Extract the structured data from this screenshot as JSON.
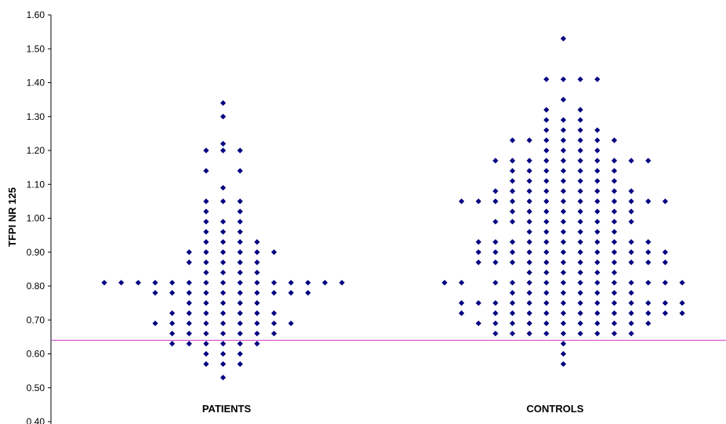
{
  "chart_data": {
    "type": "scatter",
    "title": "",
    "xlabel": "",
    "ylabel": "TFPI NR 125",
    "ylim": [
      0.4,
      1.6
    ],
    "ytick_step": 0.1,
    "y_ticks": [
      "0.40",
      "0.50",
      "0.60",
      "0.70",
      "0.80",
      "0.90",
      "1.00",
      "1.10",
      "1.20",
      "1.30",
      "1.40",
      "1.50",
      "1.60"
    ],
    "categories": [
      "PATIENTS",
      "CONTROLS"
    ],
    "grid": false,
    "legend": "none",
    "marker_color": "#000080",
    "reference_line": {
      "y": 0.64,
      "color": "#cc33cc"
    },
    "series": [
      {
        "columns": [
          [
            0.81
          ],
          [
            0.81
          ],
          [
            0.81
          ],
          [
            0.81,
            0.78,
            0.69
          ],
          [
            0.81,
            0.78,
            0.72,
            0.69,
            0.66,
            0.63
          ],
          [
            0.9,
            0.87,
            0.81,
            0.78,
            0.75,
            0.72,
            0.69,
            0.66,
            0.63
          ],
          [
            1.2,
            1.14,
            1.05,
            1.02,
            0.99,
            0.96,
            0.93,
            0.9,
            0.87,
            0.84,
            0.81,
            0.78,
            0.75,
            0.72,
            0.69,
            0.66,
            0.63,
            0.6,
            0.57
          ],
          [
            1.34,
            1.3,
            1.22,
            1.2,
            1.09,
            1.05,
            0.99,
            0.96,
            0.93,
            0.9,
            0.87,
            0.84,
            0.81,
            0.78,
            0.75,
            0.72,
            0.69,
            0.66,
            0.63,
            0.6,
            0.57,
            0.53
          ],
          [
            1.2,
            1.14,
            1.05,
            1.02,
            0.99,
            0.96,
            0.93,
            0.9,
            0.87,
            0.84,
            0.81,
            0.78,
            0.75,
            0.72,
            0.69,
            0.66,
            0.63,
            0.6,
            0.57
          ],
          [
            0.93,
            0.9,
            0.87,
            0.84,
            0.81,
            0.78,
            0.75,
            0.72,
            0.69,
            0.66,
            0.63
          ],
          [
            0.9,
            0.81,
            0.78,
            0.72,
            0.69,
            0.66
          ],
          [
            0.81,
            0.78,
            0.69
          ],
          [
            0.81,
            0.78
          ],
          [
            0.81
          ],
          [
            0.81
          ]
        ]
      },
      {
        "columns": [
          [
            0.81
          ],
          [
            1.05,
            0.81,
            0.75,
            0.72
          ],
          [
            1.05,
            0.93,
            0.9,
            0.87,
            0.75,
            0.69
          ],
          [
            1.17,
            1.08,
            1.05,
            0.99,
            0.93,
            0.9,
            0.87,
            0.81,
            0.75,
            0.72,
            0.69,
            0.66
          ],
          [
            1.23,
            1.17,
            1.14,
            1.11,
            1.08,
            1.05,
            1.02,
            0.99,
            0.93,
            0.9,
            0.87,
            0.81,
            0.78,
            0.75,
            0.72,
            0.69,
            0.66
          ],
          [
            1.23,
            1.17,
            1.14,
            1.11,
            1.08,
            1.05,
            1.02,
            0.99,
            0.96,
            0.93,
            0.9,
            0.87,
            0.84,
            0.81,
            0.78,
            0.75,
            0.72,
            0.69,
            0.66
          ],
          [
            1.41,
            1.32,
            1.29,
            1.26,
            1.23,
            1.2,
            1.17,
            1.14,
            1.11,
            1.08,
            1.05,
            1.02,
            0.99,
            0.96,
            0.93,
            0.9,
            0.87,
            0.84,
            0.81,
            0.78,
            0.75,
            0.72,
            0.69,
            0.66
          ],
          [
            1.53,
            1.41,
            1.35,
            1.29,
            1.26,
            1.23,
            1.2,
            1.17,
            1.14,
            1.11,
            1.08,
            1.05,
            1.02,
            0.99,
            0.96,
            0.93,
            0.9,
            0.87,
            0.84,
            0.81,
            0.78,
            0.75,
            0.72,
            0.69,
            0.66,
            0.63,
            0.6,
            0.57
          ],
          [
            1.41,
            1.32,
            1.29,
            1.26,
            1.23,
            1.2,
            1.17,
            1.14,
            1.11,
            1.08,
            1.05,
            1.02,
            0.99,
            0.96,
            0.93,
            0.9,
            0.87,
            0.84,
            0.81,
            0.78,
            0.75,
            0.72,
            0.69,
            0.66
          ],
          [
            1.41,
            1.26,
            1.23,
            1.2,
            1.17,
            1.14,
            1.11,
            1.08,
            1.05,
            1.02,
            0.99,
            0.96,
            0.93,
            0.9,
            0.87,
            0.84,
            0.81,
            0.78,
            0.75,
            0.72,
            0.69,
            0.66
          ],
          [
            1.23,
            1.17,
            1.14,
            1.11,
            1.08,
            1.05,
            1.02,
            0.99,
            0.96,
            0.93,
            0.9,
            0.87,
            0.84,
            0.81,
            0.78,
            0.75,
            0.72,
            0.69,
            0.66
          ],
          [
            1.17,
            1.08,
            1.05,
            1.02,
            0.99,
            0.93,
            0.9,
            0.87,
            0.81,
            0.78,
            0.75,
            0.72,
            0.69,
            0.66
          ],
          [
            1.17,
            1.05,
            0.93,
            0.9,
            0.87,
            0.81,
            0.75,
            0.72,
            0.69
          ],
          [
            1.05,
            0.9,
            0.87,
            0.81,
            0.75,
            0.72
          ],
          [
            0.81,
            0.75,
            0.72
          ]
        ]
      }
    ]
  }
}
